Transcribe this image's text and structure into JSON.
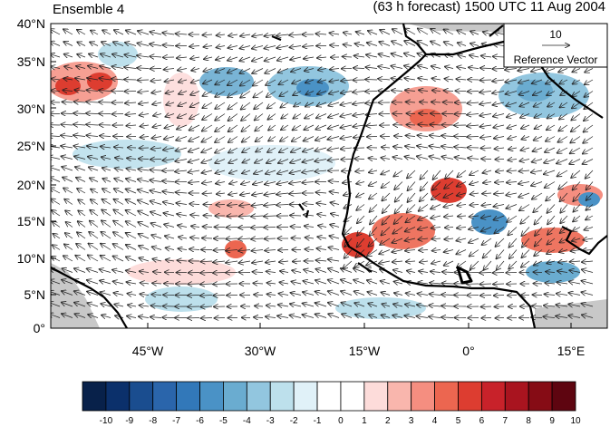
{
  "header": {
    "left_title": "Ensemble 4",
    "right_title": "(63 h forecast) 1500 UTC 11 Aug 2004"
  },
  "map": {
    "lat_labels": [
      "40°N",
      "35°N",
      "30°N",
      "25°N",
      "20°N",
      "15°N",
      "10°N",
      "5°N",
      "0°"
    ],
    "lon_labels": [
      "45°W",
      "30°W",
      "15°W",
      "0°",
      "15°E"
    ],
    "background": "#ffffff",
    "land_mask_color": "#c8c8c8",
    "coastline_color": "#000000",
    "vector_color": "#222222"
  },
  "reference_vector": {
    "magnitude": "10",
    "label": "Reference Vector"
  },
  "colorbar": {
    "labels": [
      "-10",
      "-9",
      "-8",
      "-7",
      "-6",
      "-5",
      "-4",
      "-3",
      "-2",
      "-1",
      "0",
      "1",
      "2",
      "3",
      "4",
      "5",
      "6",
      "7",
      "8",
      "9",
      "10"
    ],
    "colors": [
      "#08214a",
      "#0b306b",
      "#1a4d8f",
      "#2a65ab",
      "#3278b9",
      "#4a92c6",
      "#6aacd0",
      "#92c6df",
      "#bde0ec",
      "#e0f1f8",
      "#ffffff",
      "#ffffff",
      "#fddcda",
      "#f9b6ad",
      "#f58e80",
      "#ec6650",
      "#dd3d30",
      "#c8222a",
      "#a9141f",
      "#860c15",
      "#5e0510"
    ]
  }
}
